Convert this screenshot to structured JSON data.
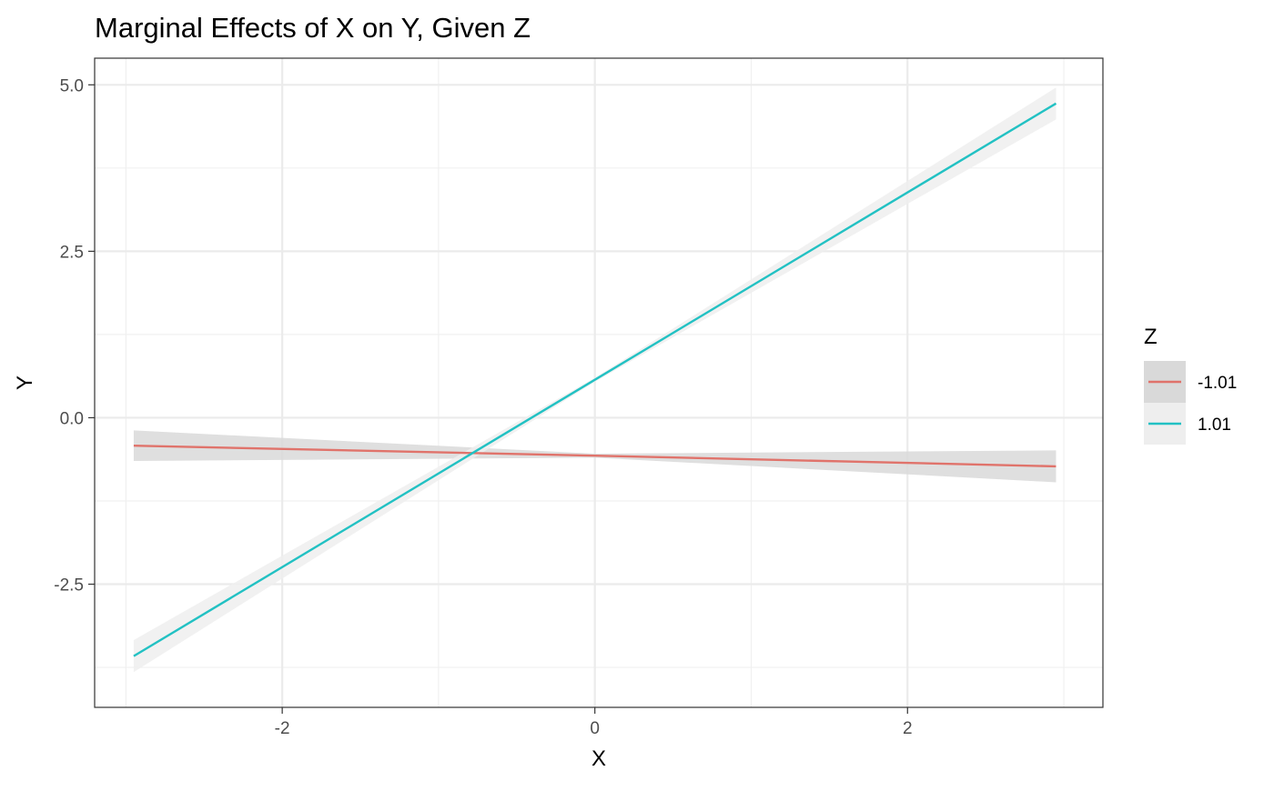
{
  "chart_data": {
    "type": "line",
    "title": "Marginal Effects of X on Y, Given Z",
    "xlabel": "X",
    "ylabel": "Y",
    "xlim": [
      -3.2,
      3.25
    ],
    "ylim": [
      -4.35,
      5.4
    ],
    "x_ticks": [
      -2,
      0,
      2
    ],
    "x_tick_labels": [
      "-2",
      "0",
      "2"
    ],
    "y_ticks": [
      -2.5,
      0.0,
      2.5,
      5.0
    ],
    "y_tick_labels": [
      "-2.5",
      "0.0",
      "2.5",
      "5.0"
    ],
    "grid": true,
    "legend": {
      "title": "Z",
      "position": "right"
    },
    "series": [
      {
        "name": "-1.01",
        "color": "#e0736b",
        "ribbon_color": "#d9d9d9",
        "x": [
          -2.95,
          0,
          2.95
        ],
        "y": [
          -0.42,
          -0.57,
          -0.73
        ],
        "ci_lower": [
          -0.65,
          -0.6,
          -0.97
        ],
        "ci_upper": [
          -0.19,
          -0.54,
          -0.49
        ]
      },
      {
        "name": "1.01",
        "color": "#22c1c3",
        "ribbon_color": "#eeeeee",
        "x": [
          -2.95,
          0,
          2.95
        ],
        "y": [
          -3.58,
          0.57,
          4.72
        ],
        "ci_lower": [
          -3.82,
          0.54,
          4.48
        ],
        "ci_upper": [
          -3.34,
          0.6,
          4.96
        ]
      }
    ]
  }
}
